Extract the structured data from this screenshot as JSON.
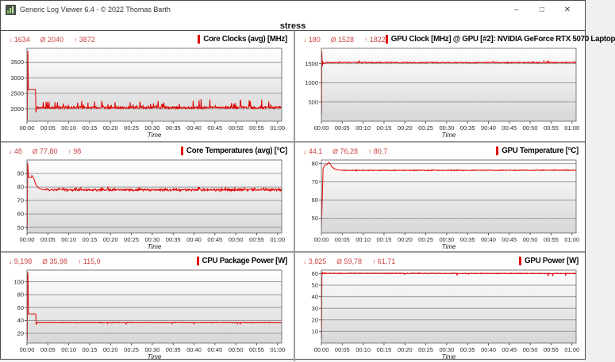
{
  "window": {
    "title": "Generic Log Viewer 6.4 - © 2022 Thomas Barth",
    "controls": {
      "minimize": "–",
      "maximize": "□",
      "close": "✕"
    }
  },
  "header": {
    "title": "stress"
  },
  "icons": {
    "min": "↓",
    "avg": "Ø",
    "max": "↑"
  },
  "colors": {
    "accent": "#e00000",
    "series": "#e00000",
    "stats": "#cc4444",
    "grid_line": "#999999",
    "plot_border": "#7a7a7a",
    "plot_gradient_top": "#fefefe",
    "plot_gradient_bottom": "#d7d7d7",
    "tick_text": "#2a2a2a"
  },
  "axis": {
    "xlabel": "Time",
    "tick_labels": [
      "00:00",
      "00:05",
      "00:10",
      "00:15",
      "00:20",
      "00:25",
      "00:30",
      "00:35",
      "00:40",
      "00:45",
      "00:50",
      "00:55",
      "01:00"
    ],
    "tick_seconds": [
      0,
      300,
      600,
      900,
      1200,
      1500,
      1800,
      2100,
      2400,
      2700,
      3000,
      3300,
      3600
    ],
    "x_max_seconds": 3660
  },
  "chart_data": [
    {
      "type": "line",
      "title": "Core Clocks (avg) [MHz]",
      "stats": {
        "min": "1634",
        "avg": "2040",
        "max": "3872"
      },
      "y_ticks": [
        2000,
        2500,
        3000,
        3500
      ],
      "y_range": [
        1600,
        3950
      ],
      "points": [
        [
          0,
          2040
        ],
        [
          5,
          1634
        ],
        [
          12,
          3872
        ],
        [
          20,
          2620
        ],
        [
          122,
          2620
        ],
        [
          128,
          1880
        ],
        [
          138,
          2040
        ],
        [
          3660,
          2035
        ]
      ],
      "noise": {
        "start": 140,
        "amp": 35,
        "spike_prob": 0.1,
        "spike_amp": 260
      },
      "seed": 11
    },
    {
      "type": "line",
      "title": "GPU Clock [MHz] @ GPU [#2]: NVIDIA GeForce RTX 5070 Laptop",
      "stats": {
        "min": "180",
        "avg": "1528",
        "max": "1822"
      },
      "y_ticks": [
        500,
        1000,
        1500
      ],
      "y_range": [
        0,
        1900
      ],
      "points": [
        [
          0,
          1700
        ],
        [
          3,
          180
        ],
        [
          7,
          1822
        ],
        [
          13,
          1430
        ],
        [
          22,
          1545
        ],
        [
          40,
          1500
        ],
        [
          70,
          1535
        ],
        [
          3660,
          1532
        ]
      ],
      "noise": {
        "start": 70,
        "amp": 12,
        "spike_prob": 0.04,
        "spike_amp": 45
      },
      "seed": 22
    },
    {
      "type": "line",
      "title": "Core Temperatures (avg) [°C]",
      "stats": {
        "min": "48",
        "avg": "77,80",
        "max": "98"
      },
      "y_ticks": [
        50,
        60,
        70,
        80,
        90
      ],
      "y_range": [
        46,
        100
      ],
      "points": [
        [
          0,
          56
        ],
        [
          4,
          48
        ],
        [
          10,
          98
        ],
        [
          18,
          91
        ],
        [
          26,
          87
        ],
        [
          60,
          87
        ],
        [
          70,
          88.5
        ],
        [
          80,
          88
        ],
        [
          105,
          85.5
        ],
        [
          125,
          82
        ],
        [
          160,
          79.5
        ],
        [
          210,
          78.3
        ],
        [
          270,
          77.8
        ],
        [
          3660,
          77.9
        ]
      ],
      "noise": {
        "start": 270,
        "amp": 0.8,
        "spike_prob": 0.07,
        "spike_amp": 1.7
      },
      "seed": 33
    },
    {
      "type": "line",
      "title": "GPU Temperature [°C]",
      "stats": {
        "min": "44,1",
        "avg": "76,28",
        "max": "80,7"
      },
      "y_ticks": [
        50,
        60,
        70,
        80
      ],
      "y_range": [
        42,
        82
      ],
      "points": [
        [
          0,
          44.1
        ],
        [
          25,
          77.5
        ],
        [
          50,
          79.2
        ],
        [
          85,
          79.6
        ],
        [
          105,
          80.7
        ],
        [
          120,
          80.4
        ],
        [
          145,
          78.5
        ],
        [
          185,
          77.2
        ],
        [
          235,
          76.6
        ],
        [
          320,
          76.3
        ],
        [
          3660,
          76.4
        ]
      ],
      "noise": {
        "start": 320,
        "amp": 0.22,
        "spike_prob": 0.0,
        "spike_amp": 0
      },
      "seed": 44
    },
    {
      "type": "line",
      "title": "CPU Package Power [W]",
      "stats": {
        "min": "9,198",
        "avg": "35,98",
        "max": "115,0"
      },
      "y_ticks": [
        20,
        40,
        60,
        80,
        100
      ],
      "y_range": [
        5,
        118
      ],
      "points": [
        [
          0,
          30
        ],
        [
          4,
          9.198
        ],
        [
          10,
          115
        ],
        [
          15,
          108
        ],
        [
          20,
          50
        ],
        [
          125,
          50
        ],
        [
          131,
          33.5
        ],
        [
          145,
          36.6
        ],
        [
          3660,
          36.5
        ]
      ],
      "noise": {
        "start": 145,
        "amp": 0.45,
        "spike_prob": 0.02,
        "spike_amp": -3
      },
      "seed": 55
    },
    {
      "type": "line",
      "title": "GPU Power [W]",
      "stats": {
        "min": "3,825",
        "avg": "59,78",
        "max": "61,71"
      },
      "y_ticks": [
        10,
        20,
        30,
        40,
        50,
        60
      ],
      "y_range": [
        0,
        63
      ],
      "points": [
        [
          0,
          25
        ],
        [
          3,
          3.825
        ],
        [
          8,
          61.71
        ],
        [
          15,
          60.3
        ],
        [
          3660,
          60.1
        ]
      ],
      "noise": {
        "start": 15,
        "amp": 0.3,
        "spike_prob": 0.015,
        "spike_amp": -2.5
      },
      "seed": 66
    }
  ]
}
